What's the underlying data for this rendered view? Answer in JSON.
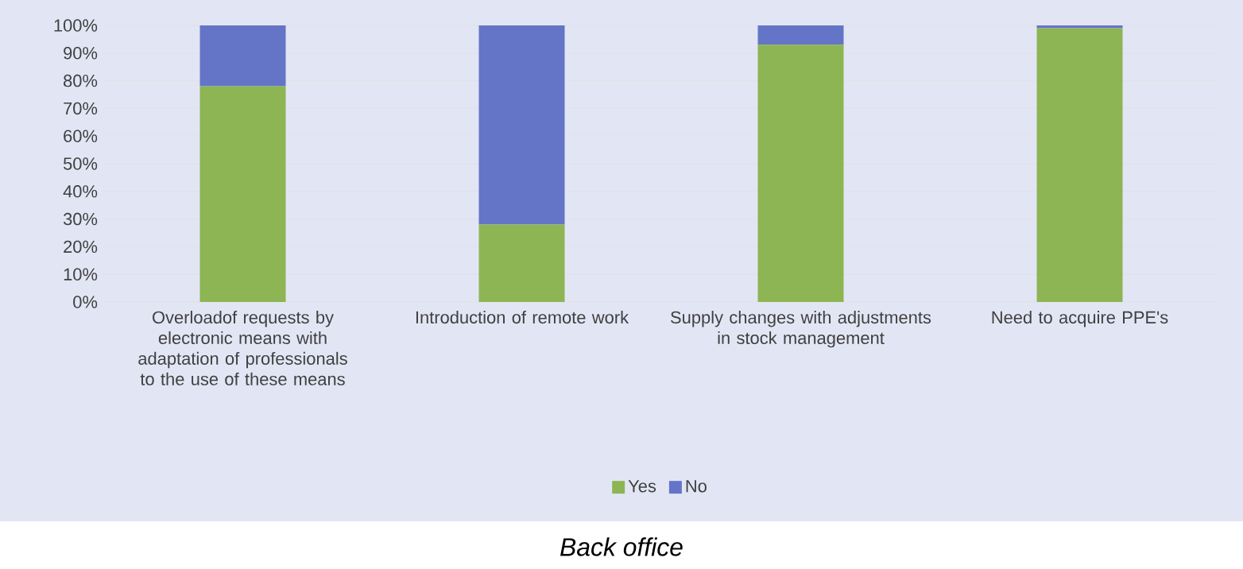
{
  "chart_data": {
    "type": "bar",
    "stacked": true,
    "categories": [
      "Overloadof requests by electronic means with adaptation of professionals to the use of these means",
      "Introduction of remote work",
      "Supply changes with adjustments in stock management",
      "Need to acquire PPE's"
    ],
    "series": [
      {
        "name": "Yes",
        "color": "#8db554",
        "values": [
          78,
          28,
          93,
          99
        ]
      },
      {
        "name": "No",
        "color": "#6475c7",
        "values": [
          22,
          72,
          7,
          1
        ]
      }
    ],
    "ylim": [
      0,
      100
    ],
    "yticks": [
      {
        "value": 0,
        "label": "0%"
      },
      {
        "value": 10,
        "label": "10%"
      },
      {
        "value": 20,
        "label": "20%"
      },
      {
        "value": 30,
        "label": "30%"
      },
      {
        "value": 40,
        "label": "40%"
      },
      {
        "value": 50,
        "label": "50%"
      },
      {
        "value": 60,
        "label": "60%"
      },
      {
        "value": 70,
        "label": "70%"
      },
      {
        "value": 80,
        "label": "80%"
      },
      {
        "value": 90,
        "label": "90%"
      },
      {
        "value": 100,
        "label": "100%"
      }
    ],
    "grid": "y",
    "legend": "bottom",
    "annotations": [
      "Back office"
    ]
  }
}
